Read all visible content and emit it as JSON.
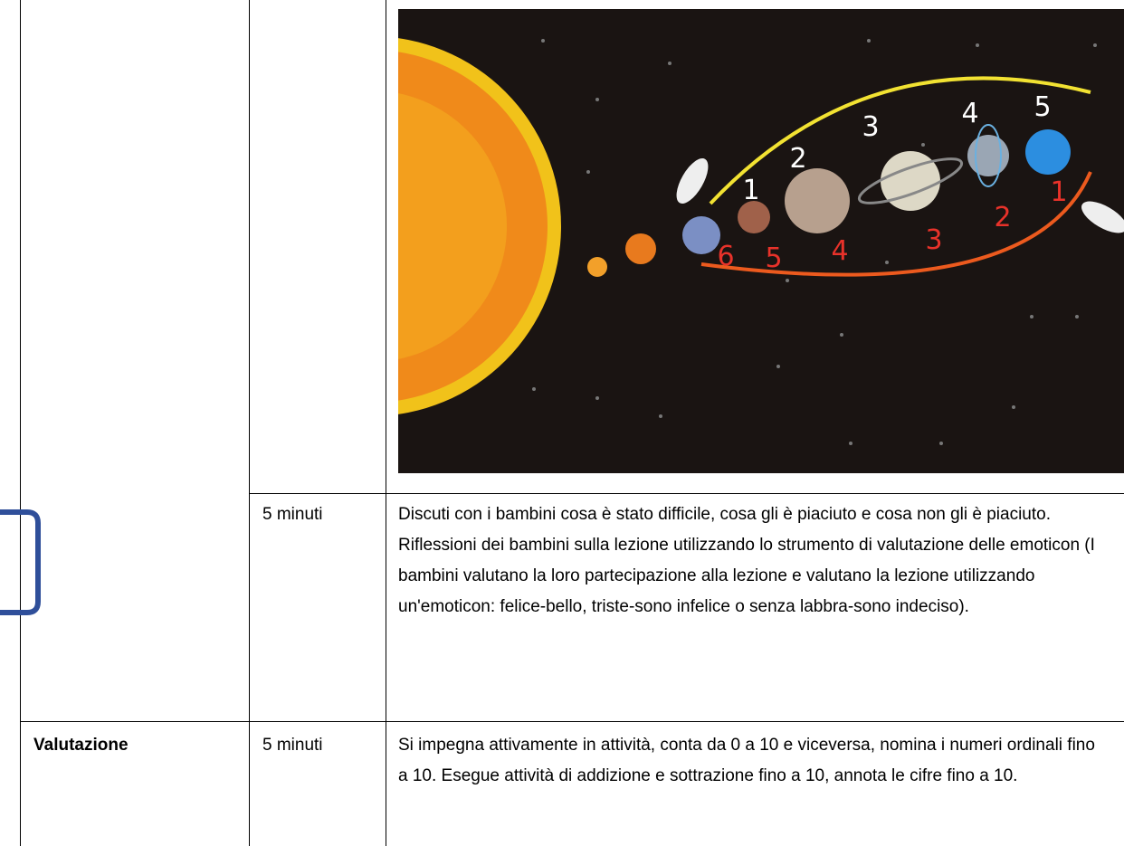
{
  "table": {
    "rows": [
      {
        "duration": "5 minuti",
        "description": "Discuti con i bambini cosa è stato difficile, cosa gli è piaciuto e cosa non gli è piaciuto. Riflessioni dei bambini sulla lezione utilizzando lo strumento di valutazione delle emoticon (I bambini valutano la loro partecipazione alla lezione e valutano la lezione utilizzando un'emoticon: felice-bello, triste-sono infelice o senza labbra-sono indeciso)."
      },
      {
        "phase": "Valutazione",
        "duration": "5 minuti",
        "description": "Si impegna attivamente in attività, conta da 0 a 10 e viceversa, nomina i numeri ordinali fino a 10. Esegue attività di addizione e sottrazione fino a 10, annota le cifre fino a 10."
      }
    ]
  },
  "illustration": {
    "top_labels": [
      "1",
      "2",
      "3",
      "4",
      "5"
    ],
    "bottom_labels": [
      "6",
      "5",
      "4",
      "3",
      "2",
      "1"
    ]
  }
}
